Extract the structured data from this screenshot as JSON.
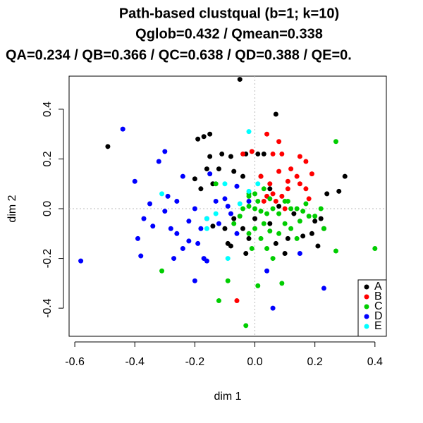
{
  "chart_data": {
    "type": "scatter",
    "title": "Path-based clustqual (b=1; k=10)",
    "subtitle": "Qglob=0.432 / Qmean=0.338",
    "subtitle2": "QA=0.234 / QB=0.366 / QC=0.638 / QD=0.388 / QE=0.",
    "x_label": "dim 1",
    "y_label": "dim 2",
    "xlim": [
      -0.619,
      0.438
    ],
    "ylim": [
      -0.513,
      0.533
    ],
    "xticks": [
      -0.6,
      -0.4,
      -0.2,
      {
        "value": 0,
        "label": "0.0"
      },
      0.2,
      0.4
    ],
    "yticks": [
      -0.4,
      -0.2,
      {
        "value": 0,
        "label": "0.0"
      },
      0.2,
      0.4
    ],
    "zero_lines": true,
    "legend": "bottom-right",
    "series": [
      {
        "name": "A",
        "color": "#000000",
        "x": [
          -0.49,
          -0.05,
          -0.15,
          -0.17,
          -0.19,
          -0.15,
          -0.11,
          -0.16,
          -0.12,
          -0.2,
          -0.18,
          -0.14,
          -0.08,
          -0.03,
          0.01,
          0.03,
          0.07,
          -0.07,
          -0.04,
          0.02,
          0.3,
          0.24,
          0.28,
          0.22,
          0.23,
          0.2,
          0.13,
          0.08,
          0.11,
          0.07,
          0.1,
          0.16,
          0.19,
          0.21,
          0.05,
          -0.03,
          -0.09,
          -0.1,
          -0.07,
          -0.04,
          -0.02,
          0.05,
          0.0,
          -0.14,
          -0.08
        ],
        "values": [
          0.25,
          0.52,
          0.3,
          0.29,
          0.28,
          0.21,
          0.22,
          0.16,
          0.16,
          0.12,
          0.08,
          0.1,
          0.21,
          0.22,
          0.22,
          0.22,
          0.38,
          0.15,
          0.13,
          0.13,
          0.13,
          0.06,
          0.07,
          -0.04,
          -0.08,
          -0.05,
          -0.02,
          0.01,
          -0.12,
          -0.14,
          -0.18,
          -0.11,
          -0.1,
          -0.15,
          0.08,
          -0.18,
          -0.14,
          -0.08,
          -0.04,
          -0.08,
          -0.12,
          -0.06,
          -0.04,
          -0.07,
          -0.15
        ]
      },
      {
        "name": "B",
        "color": "#ff0000",
        "x": [
          0.04,
          0.08,
          -0.04,
          -0.01,
          0.06,
          0.09,
          0.15,
          0.12,
          0.17,
          0.08,
          0.02,
          0.14,
          0.19,
          0.15,
          0.11,
          0.17,
          0.11,
          0.05,
          0.06,
          0.04,
          0.03,
          0.09,
          0.18,
          -0.06,
          0.1,
          0.07
        ],
        "values": [
          0.3,
          0.27,
          0.22,
          0.23,
          0.22,
          0.22,
          0.21,
          0.16,
          0.19,
          0.15,
          0.13,
          0.13,
          0.14,
          0.1,
          0.11,
          0.08,
          0.08,
          0.1,
          0.06,
          0.05,
          0.03,
          0.05,
          0.04,
          -0.37,
          0.0,
          0.03
        ]
      },
      {
        "name": "C",
        "color": "#00cd00",
        "x": [
          0.27,
          0.1,
          0.12,
          0.14,
          0.16,
          0.18,
          0.08,
          0.06,
          0.04,
          0.02,
          0.0,
          -0.02,
          -0.04,
          0.03,
          0.05,
          0.08,
          0.12,
          0.15,
          0.0,
          -0.02,
          0.02,
          0.04,
          -0.01,
          -0.05,
          -0.07,
          0.0,
          0.03,
          0.05,
          -0.02,
          0.01,
          0.27,
          0.4,
          0.09,
          -0.09,
          -0.12,
          -0.31,
          0.01,
          -0.03,
          0.23,
          0.2,
          0.14,
          0.06,
          0.11,
          0.17,
          -0.13,
          -0.02,
          0.22,
          0.1
        ],
        "values": [
          0.27,
          0.03,
          0.0,
          0.0,
          -0.01,
          -0.03,
          -0.02,
          0.0,
          -0.02,
          -0.01,
          0.0,
          0.01,
          0.0,
          -0.06,
          -0.09,
          -0.1,
          -0.08,
          -0.05,
          -0.08,
          -0.1,
          -0.12,
          -0.16,
          -0.16,
          -0.03,
          -0.06,
          0.06,
          0.08,
          0.04,
          0.06,
          0.03,
          -0.17,
          -0.16,
          -0.3,
          -0.29,
          -0.37,
          -0.25,
          -0.31,
          -0.47,
          -0.08,
          -0.03,
          -0.12,
          -0.2,
          0.03,
          0.02,
          0.1,
          0.05,
          0.0,
          -0.06
        ]
      },
      {
        "name": "D",
        "color": "#0000ff",
        "x": [
          -0.44,
          -0.58,
          -0.3,
          -0.32,
          -0.4,
          -0.35,
          -0.29,
          -0.26,
          -0.3,
          -0.37,
          -0.34,
          -0.28,
          -0.22,
          -0.2,
          -0.26,
          -0.22,
          -0.18,
          -0.16,
          -0.19,
          -0.24,
          -0.27,
          -0.17,
          -0.16,
          -0.39,
          -0.38,
          -0.2,
          -0.24,
          -0.15,
          -0.13,
          -0.1,
          -0.08,
          -0.12,
          -0.06,
          -0.06,
          0.23,
          0.06,
          0.15,
          -0.09,
          0.04,
          -0.02
        ],
        "values": [
          0.32,
          -0.21,
          0.23,
          0.19,
          0.11,
          0.02,
          0.05,
          0.03,
          -0.01,
          -0.04,
          -0.07,
          -0.08,
          -0.05,
          0.0,
          -0.1,
          -0.13,
          -0.08,
          -0.04,
          -0.14,
          -0.16,
          -0.2,
          -0.2,
          -0.21,
          -0.12,
          -0.19,
          -0.29,
          0.13,
          0.14,
          0.03,
          0.04,
          -0.02,
          -0.06,
          0.09,
          -0.1,
          -0.32,
          -0.4,
          -0.18,
          0.01,
          -0.25,
          0.03
        ]
      },
      {
        "name": "E",
        "color": "#00ffff",
        "x": [
          -0.02,
          -0.31,
          -0.02,
          -0.16,
          -0.16,
          -0.05,
          -0.09,
          0.01,
          -0.1,
          -0.13
        ],
        "values": [
          0.31,
          0.06,
          0.07,
          -0.04,
          -0.08,
          0.02,
          -0.2,
          0.1,
          0.1,
          -0.02
        ]
      }
    ]
  }
}
